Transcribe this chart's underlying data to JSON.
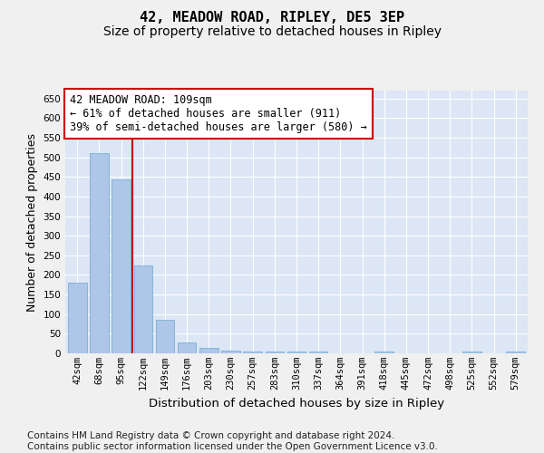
{
  "title": "42, MEADOW ROAD, RIPLEY, DE5 3EP",
  "subtitle": "Size of property relative to detached houses in Ripley",
  "xlabel": "Distribution of detached houses by size in Ripley",
  "ylabel": "Number of detached properties",
  "footnote": "Contains HM Land Registry data © Crown copyright and database right 2024.\nContains public sector information licensed under the Open Government Licence v3.0.",
  "categories": [
    "42sqm",
    "68sqm",
    "95sqm",
    "122sqm",
    "149sqm",
    "176sqm",
    "203sqm",
    "230sqm",
    "257sqm",
    "283sqm",
    "310sqm",
    "337sqm",
    "364sqm",
    "391sqm",
    "418sqm",
    "445sqm",
    "472sqm",
    "498sqm",
    "525sqm",
    "552sqm",
    "579sqm"
  ],
  "values": [
    180,
    510,
    443,
    225,
    85,
    28,
    14,
    7,
    5,
    5,
    5,
    5,
    0,
    0,
    5,
    0,
    0,
    0,
    5,
    0,
    5
  ],
  "bar_color": "#aec6e8",
  "bar_edgecolor": "#7bafd4",
  "bg_color": "#dce6f5",
  "grid_color": "#ffffff",
  "fig_bg_color": "#f0f0f0",
  "annotation_text": "42 MEADOW ROAD: 109sqm\n← 61% of detached houses are smaller (911)\n39% of semi-detached houses are larger (580) →",
  "annotation_box_color": "#ffffff",
  "annotation_box_edgecolor": "#cc0000",
  "vline_x": 2.5,
  "vline_color": "#cc0000",
  "ylim": [
    0,
    670
  ],
  "yticks": [
    0,
    50,
    100,
    150,
    200,
    250,
    300,
    350,
    400,
    450,
    500,
    550,
    600,
    650
  ],
  "title_fontsize": 11,
  "subtitle_fontsize": 10,
  "xlabel_fontsize": 9.5,
  "ylabel_fontsize": 9,
  "tick_fontsize": 7.5,
  "annotation_fontsize": 8.5,
  "footnote_fontsize": 7.5
}
